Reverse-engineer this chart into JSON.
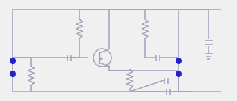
{
  "bg_color": "#f0f0f0",
  "line_color": "#9fa3bc",
  "dot_color": "#2222cc",
  "line_width": 1.1,
  "fig_width": 3.43,
  "fig_height": 1.47,
  "dpi": 100
}
